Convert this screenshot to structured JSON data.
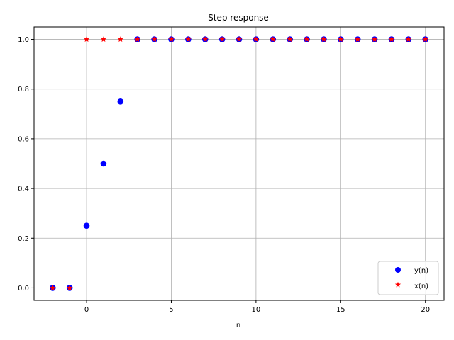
{
  "chart_data": {
    "type": "scatter",
    "title": "Step response",
    "xlabel": "n",
    "ylabel": "",
    "xlim": [
      -3.1,
      21.1
    ],
    "ylim": [
      -0.05,
      1.05
    ],
    "xticks": [
      0,
      5,
      10,
      15,
      20
    ],
    "yticks": [
      0.0,
      0.2,
      0.4,
      0.6,
      0.8,
      1.0
    ],
    "xtick_labels": [
      "0",
      "5",
      "10",
      "15",
      "20"
    ],
    "ytick_labels": [
      "0.0",
      "0.2",
      "0.4",
      "0.6",
      "0.8",
      "1.0"
    ],
    "grid": true,
    "legend_position": "lower-right",
    "series": [
      {
        "name": "y(n)",
        "marker": "circle",
        "color": "#0000ff",
        "x": [
          -2,
          -1,
          0,
          1,
          2,
          3,
          4,
          5,
          6,
          7,
          8,
          9,
          10,
          11,
          12,
          13,
          14,
          15,
          16,
          17,
          18,
          19,
          20
        ],
        "y": [
          0,
          0,
          0.25,
          0.5,
          0.75,
          1,
          1,
          1,
          1,
          1,
          1,
          1,
          1,
          1,
          1,
          1,
          1,
          1,
          1,
          1,
          1,
          1,
          1
        ]
      },
      {
        "name": "x(n)",
        "marker": "star",
        "color": "#ff0000",
        "x": [
          -2,
          -1,
          0,
          1,
          2,
          3,
          4,
          5,
          6,
          7,
          8,
          9,
          10,
          11,
          12,
          13,
          14,
          15,
          16,
          17,
          18,
          19,
          20
        ],
        "y": [
          0,
          0,
          1,
          1,
          1,
          1,
          1,
          1,
          1,
          1,
          1,
          1,
          1,
          1,
          1,
          1,
          1,
          1,
          1,
          1,
          1,
          1,
          1
        ]
      }
    ]
  }
}
